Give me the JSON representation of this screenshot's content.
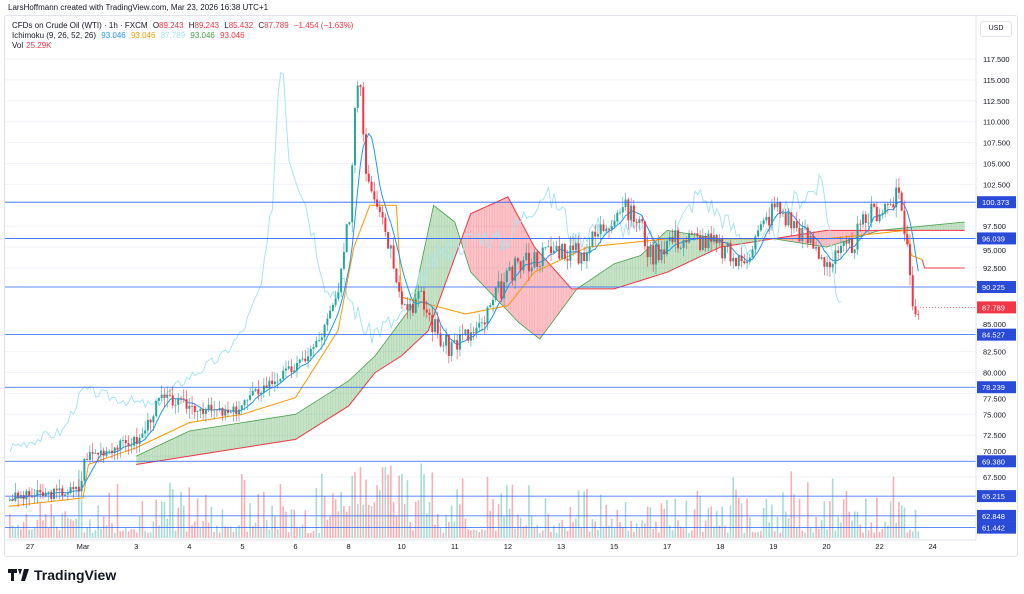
{
  "credit": "LarsHoffmann created with TradingView.com, Mar 23, 2026 16:38 UTC+1",
  "legend": {
    "symbol": "CFDs on Crude Oil (WTI) · 1h · FXCM",
    "o_label": "O",
    "o": "89.243",
    "h_label": "H",
    "h": "89.243",
    "l_label": "L",
    "l": "85.432",
    "c_label": "C",
    "c": "87.789",
    "change": "−1.454 (−1.63%)",
    "ichimoku_label": "Ichimoku (9, 26, 52, 26)",
    "ichi_values": [
      "93.046",
      "93.046",
      "87.789",
      "93.046",
      "93.046"
    ],
    "vol_label": "Vol",
    "vol": "25.29K"
  },
  "currency": "USD",
  "brand": "TradingView",
  "colors": {
    "up": "#26a69a",
    "down": "#f23645",
    "tenkan": "#2196f3",
    "kijun": "#ff9800",
    "lagging": "#a9e4f2",
    "span_a": "#43a047",
    "span_b": "#f23645",
    "hline": "#2962ff"
  },
  "chart_data": {
    "type": "candlestick",
    "title": "CFDs on Crude Oil (WTI) · 1h · FXCM",
    "x_ticks": [
      "27",
      "Mar",
      "3",
      "4",
      "5",
      "6",
      "8",
      "10",
      "11",
      "12",
      "13",
      "15",
      "17",
      "18",
      "19",
      "20",
      "22",
      "24"
    ],
    "y_ticks": [
      "117.500",
      "115.000",
      "112.500",
      "110.000",
      "107.500",
      "105.000",
      "102.500",
      "97.500",
      "95.000",
      "92.500",
      "85.000",
      "82.500",
      "80.000",
      "77.500",
      "75.000",
      "72.500",
      "70.000",
      "67.500"
    ],
    "ylim": [
      60.5,
      120
    ],
    "price_path": [
      [
        -0.38,
        65
      ],
      [
        0.38,
        65.5
      ],
      [
        0.94,
        66
      ],
      [
        1.04,
        70
      ],
      [
        2.07,
        72
      ],
      [
        2.45,
        77
      ],
      [
        3.01,
        76
      ],
      [
        3.77,
        75
      ],
      [
        4.33,
        78
      ],
      [
        5.08,
        81
      ],
      [
        5.46,
        84
      ],
      [
        5.84,
        90
      ],
      [
        6.03,
        100
      ],
      [
        6.12,
        112
      ],
      [
        6.21,
        117
      ],
      [
        6.31,
        105
      ],
      [
        6.59,
        100
      ],
      [
        6.87,
        93
      ],
      [
        7.06,
        88
      ],
      [
        7.34,
        89
      ],
      [
        7.82,
        83
      ],
      [
        8.1,
        84
      ],
      [
        8.47,
        85
      ],
      [
        8.85,
        90
      ],
      [
        9.23,
        93
      ],
      [
        9.6,
        94
      ],
      [
        9.98,
        95
      ],
      [
        10.36,
        94
      ],
      [
        10.73,
        97
      ],
      [
        11.11,
        100
      ],
      [
        11.49,
        98
      ],
      [
        11.68,
        94
      ],
      [
        12.05,
        96
      ],
      [
        12.62,
        96
      ],
      [
        12.99,
        95
      ],
      [
        13.37,
        93
      ],
      [
        13.75,
        97
      ],
      [
        14.03,
        100
      ],
      [
        14.5,
        97
      ],
      [
        15.07,
        93
      ],
      [
        15.44,
        95
      ],
      [
        15.82,
        99
      ],
      [
        16.38,
        101
      ],
      [
        16.53,
        95
      ],
      [
        16.61,
        88
      ],
      [
        16.76,
        87.8
      ]
    ],
    "kijun": [
      [
        -0.4,
        64
      ],
      [
        1,
        65
      ],
      [
        1.1,
        69
      ],
      [
        2,
        71
      ],
      [
        3,
        74
      ],
      [
        4,
        75
      ],
      [
        5,
        77
      ],
      [
        5.8,
        85
      ],
      [
        6.1,
        95
      ],
      [
        6.4,
        100
      ],
      [
        6.9,
        100
      ],
      [
        7.0,
        89
      ],
      [
        8.2,
        87
      ],
      [
        9,
        88
      ],
      [
        9.5,
        92
      ],
      [
        10.5,
        95
      ],
      [
        12,
        96
      ],
      [
        14,
        96
      ],
      [
        15,
        96
      ],
      [
        16.5,
        97
      ],
      [
        16.6,
        94
      ],
      [
        16.8,
        93.5
      ]
    ],
    "span_a": [
      [
        2,
        70
      ],
      [
        3,
        73
      ],
      [
        4,
        74
      ],
      [
        5,
        75
      ],
      [
        6,
        79
      ],
      [
        6.5,
        82
      ],
      [
        7.2,
        88
      ],
      [
        7.6,
        100
      ],
      [
        8.0,
        98
      ],
      [
        8.3,
        92
      ],
      [
        9.2,
        86
      ],
      [
        9.6,
        84
      ],
      [
        10.3,
        90
      ],
      [
        11,
        93
      ],
      [
        11.5,
        94
      ],
      [
        12,
        97
      ],
      [
        13,
        96
      ],
      [
        14,
        96
      ],
      [
        15,
        95
      ],
      [
        16,
        97
      ],
      [
        17.6,
        98
      ]
    ],
    "span_b": [
      [
        2,
        69
      ],
      [
        3,
        70
      ],
      [
        5,
        72
      ],
      [
        6,
        76
      ],
      [
        6.5,
        80
      ],
      [
        7,
        82
      ],
      [
        7.5,
        85
      ],
      [
        8.3,
        99
      ],
      [
        9.0,
        101
      ],
      [
        9.5,
        95
      ],
      [
        10.2,
        90
      ],
      [
        11,
        90
      ],
      [
        12,
        92
      ],
      [
        13,
        95
      ],
      [
        14,
        96
      ],
      [
        15,
        97
      ],
      [
        16,
        97
      ],
      [
        17.6,
        97
      ]
    ],
    "future_kijun_end": 92.5,
    "horizontal_levels": [
      "100.373",
      "96.039",
      "90.225",
      "84.527",
      "78.239",
      "69.380",
      "65.215",
      "62.848",
      "61.442"
    ],
    "last_price": "87.789"
  }
}
